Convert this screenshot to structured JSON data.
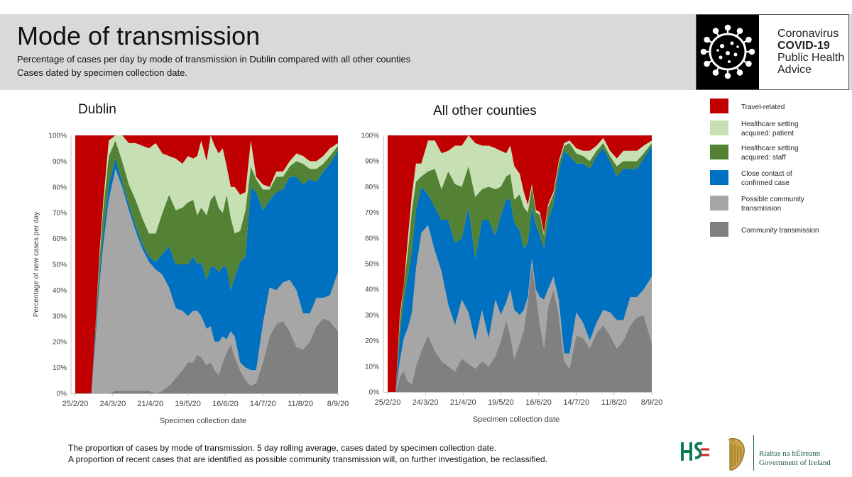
{
  "header": {
    "title": "Mode of transmission",
    "subtitle_line1": "Percentage of cases per day by mode of transmission in Dublin compared with all other counties",
    "subtitle_line2": "Cases dated by specimen collection date."
  },
  "logo": {
    "line1": "Coronavirus",
    "line2": "COVID-19",
    "line3": "Public Health",
    "line4": "Advice"
  },
  "legend": [
    {
      "label_line1": "Travel-related",
      "label_line2": "",
      "color": "#c00000"
    },
    {
      "label_line1": "Healthcare setting",
      "label_line2": "acquired: patient",
      "color": "#c6e0b4"
    },
    {
      "label_line1": "Healthcare setting",
      "label_line2": "acquired: staff",
      "color": "#548235"
    },
    {
      "label_line1": "Close contact of",
      "label_line2": "confirmed case",
      "color": "#0070c0"
    },
    {
      "label_line1": "Possible community",
      "label_line2": "transmission",
      "color": "#a6a6a6"
    },
    {
      "label_line1": "Community transmission",
      "label_line2": "",
      "color": "#808080"
    }
  ],
  "footnote": {
    "line1": "The proportion of cases by mode of transmission. 5 day rolling average, cases dated by specimen collection date.",
    "line2": "A proportion of recent cases that are identified as possible community transmission will, on further investigation, be reclassified."
  },
  "government": {
    "line1": "Rialtas na hÉireann",
    "line2": "Government of Ireland"
  },
  "chart_data": [
    {
      "type": "area",
      "stacked": true,
      "title": "Dublin",
      "xlabel": "Specimen collection date",
      "ylabel": "Percentage of new cases per day",
      "ylim": [
        0,
        100
      ],
      "ytick_labels": [
        "0%",
        "10%",
        "20%",
        "30%",
        "40%",
        "50%",
        "60%",
        "70%",
        "80%",
        "90%",
        "100%"
      ],
      "xtick_labels": [
        "25/2/20",
        "24/3/20",
        "21/4/20",
        "19/5/20",
        "16/6/20",
        "14/7/20",
        "11/8/20",
        "8/9/20"
      ],
      "x_days": [
        0,
        3,
        6,
        9,
        12,
        15,
        18,
        21,
        25,
        30,
        35,
        40,
        45,
        50,
        55,
        60,
        65,
        70,
        75,
        80,
        84,
        88,
        91,
        94,
        98,
        101,
        104,
        107,
        110,
        113,
        116,
        119,
        123,
        127,
        131,
        135,
        140,
        145,
        150,
        155,
        160,
        165,
        170,
        175,
        180,
        185,
        190,
        196
      ],
      "series": [
        {
          "name": "Community transmission",
          "color": "#808080",
          "values": [
            0,
            0,
            0,
            0,
            0,
            0,
            0,
            0,
            0,
            1,
            1,
            1,
            1,
            1,
            1,
            0,
            1,
            3,
            6,
            9,
            12,
            12,
            15,
            14,
            11,
            12,
            9,
            7,
            12,
            16,
            19,
            14,
            9,
            5,
            3,
            4,
            12,
            22,
            27,
            28,
            24,
            18,
            17,
            20,
            26,
            29,
            28,
            24
          ]
        },
        {
          "name": "Possible community transmission",
          "color": "#a6a6a6",
          "values": [
            0,
            0,
            0,
            0,
            0,
            20,
            42,
            58,
            75,
            86,
            79,
            70,
            62,
            55,
            50,
            48,
            45,
            38,
            27,
            23,
            18,
            20,
            17,
            16,
            14,
            14,
            11,
            13,
            10,
            5,
            5,
            8,
            3,
            5,
            6,
            5,
            15,
            19,
            13,
            15,
            20,
            22,
            14,
            11,
            11,
            8,
            10,
            23
          ]
        },
        {
          "name": "Close contact of confirmed case",
          "color": "#0070c0",
          "values": [
            0,
            0,
            0,
            0,
            0,
            3,
            4,
            5,
            6,
            4,
            2,
            2,
            2,
            2,
            2,
            3,
            8,
            16,
            17,
            18,
            20,
            21,
            18,
            21,
            19,
            23,
            29,
            27,
            27,
            28,
            16,
            23,
            39,
            43,
            71,
            69,
            44,
            34,
            38,
            36,
            40,
            44,
            50,
            52,
            45,
            49,
            51,
            47
          ]
        },
        {
          "name": "Healthcare setting acquired: staff",
          "color": "#548235",
          "values": [
            0,
            0,
            0,
            0,
            0,
            2,
            6,
            9,
            11,
            7,
            8,
            8,
            10,
            10,
            9,
            11,
            16,
            20,
            21,
            22,
            24,
            22,
            19,
            21,
            25,
            26,
            28,
            25,
            21,
            28,
            28,
            17,
            12,
            18,
            8,
            5,
            8,
            4,
            6,
            5,
            4,
            6,
            8,
            4,
            5,
            3,
            3,
            2
          ]
        },
        {
          "name": "Healthcare setting acquired: patient",
          "color": "#c6e0b4",
          "values": [
            0,
            0,
            0,
            0,
            0,
            0,
            2,
            3,
            6,
            2,
            10,
            16,
            22,
            28,
            33,
            35,
            23,
            15,
            20,
            17,
            18,
            16,
            23,
            26,
            21,
            25,
            19,
            21,
            25,
            11,
            12,
            18,
            14,
            7,
            10,
            1,
            2,
            1,
            2,
            2,
            2,
            3,
            3,
            3,
            3,
            3,
            3,
            1
          ]
        },
        {
          "name": "Travel-related",
          "color": "#c00000",
          "values": [
            100,
            100,
            100,
            100,
            100,
            75,
            46,
            25,
            2,
            0,
            0,
            3,
            3,
            4,
            5,
            3,
            7,
            8,
            9,
            11,
            8,
            9,
            8,
            2,
            10,
            0,
            4,
            7,
            5,
            12,
            20,
            20,
            23,
            22,
            2,
            16,
            19,
            20,
            14,
            14,
            10,
            7,
            8,
            10,
            10,
            8,
            5,
            3
          ]
        }
      ]
    },
    {
      "type": "area",
      "stacked": true,
      "title": "All other counties",
      "xlabel": "Specimen collection date",
      "ylabel": "",
      "ylim": [
        0,
        100
      ],
      "ytick_labels": [
        "0%",
        "10%",
        "20%",
        "30%",
        "40%",
        "50%",
        "60%",
        "70%",
        "80%",
        "90%",
        "100%"
      ],
      "xtick_labels": [
        "25/2/20",
        "24/3/20",
        "21/4/20",
        "19/5/20",
        "16/6/20",
        "14/7/20",
        "11/8/20",
        "8/9/20"
      ],
      "x_days": [
        0,
        3,
        6,
        9,
        12,
        15,
        18,
        21,
        25,
        30,
        35,
        40,
        45,
        50,
        55,
        60,
        65,
        70,
        75,
        80,
        84,
        88,
        91,
        94,
        98,
        101,
        104,
        107,
        110,
        113,
        116,
        119,
        123,
        127,
        131,
        135,
        140,
        145,
        150,
        155,
        160,
        165,
        170,
        175,
        180,
        185,
        190,
        196
      ],
      "series": [
        {
          "name": "Community transmission",
          "color": "#808080",
          "values": [
            0,
            0,
            0,
            6,
            8,
            4,
            3,
            10,
            16,
            22,
            16,
            12,
            10,
            8,
            13,
            11,
            9,
            12,
            10,
            14,
            20,
            28,
            22,
            13,
            19,
            24,
            35,
            50,
            38,
            26,
            17,
            33,
            40,
            30,
            12,
            9,
            22,
            21,
            17,
            23,
            26,
            22,
            17,
            20,
            26,
            29,
            30,
            19
          ]
        },
        {
          "name": "Possible community transmission",
          "color": "#a6a6a6",
          "values": [
            0,
            0,
            0,
            6,
            13,
            21,
            28,
            38,
            46,
            43,
            39,
            35,
            24,
            18,
            23,
            20,
            11,
            20,
            11,
            22,
            10,
            7,
            18,
            19,
            11,
            8,
            2,
            2,
            2,
            11,
            19,
            7,
            5,
            6,
            3,
            6,
            9,
            6,
            3,
            4,
            6,
            9,
            11,
            8,
            11,
            8,
            10,
            26
          ]
        },
        {
          "name": "Close contact of confirmed case",
          "color": "#0070c0",
          "values": [
            0,
            0,
            0,
            10,
            15,
            20,
            24,
            23,
            18,
            12,
            17,
            20,
            33,
            32,
            24,
            41,
            32,
            35,
            46,
            25,
            39,
            40,
            35,
            34,
            33,
            24,
            21,
            20,
            25,
            24,
            20,
            27,
            28,
            50,
            79,
            77,
            58,
            62,
            67,
            65,
            63,
            59,
            56,
            59,
            50,
            50,
            51,
            51
          ]
        },
        {
          "name": "Healthcare setting acquired: staff",
          "color": "#548235",
          "values": [
            0,
            0,
            0,
            6,
            6,
            10,
            16,
            11,
            4,
            9,
            15,
            12,
            19,
            23,
            20,
            16,
            24,
            12,
            13,
            18,
            11,
            9,
            10,
            9,
            14,
            16,
            12,
            8,
            5,
            8,
            5,
            5,
            4,
            3,
            2,
            5,
            4,
            3,
            3,
            2,
            2,
            2,
            4,
            3,
            3,
            3,
            2,
            1
          ]
        },
        {
          "name": "Healthcare setting acquired: patient",
          "color": "#c6e0b4",
          "values": [
            0,
            0,
            0,
            2,
            0,
            5,
            6,
            7,
            5,
            12,
            11,
            14,
            8,
            15,
            16,
            12,
            21,
            17,
            16,
            16,
            14,
            9,
            11,
            13,
            8,
            6,
            3,
            1,
            1,
            1,
            1,
            1,
            1,
            1,
            1,
            1,
            2,
            2,
            4,
            2,
            2,
            2,
            3,
            4,
            4,
            4,
            3,
            1
          ]
        },
        {
          "name": "Travel-related",
          "color": "#c00000",
          "values": [
            100,
            100,
            100,
            70,
            58,
            40,
            23,
            11,
            11,
            2,
            2,
            7,
            6,
            4,
            4,
            0,
            3,
            4,
            4,
            5,
            6,
            7,
            4,
            12,
            15,
            22,
            27,
            19,
            29,
            30,
            38,
            27,
            22,
            10,
            3,
            2,
            5,
            6,
            6,
            4,
            1,
            6,
            9,
            6,
            6,
            6,
            4,
            2
          ]
        }
      ]
    }
  ]
}
